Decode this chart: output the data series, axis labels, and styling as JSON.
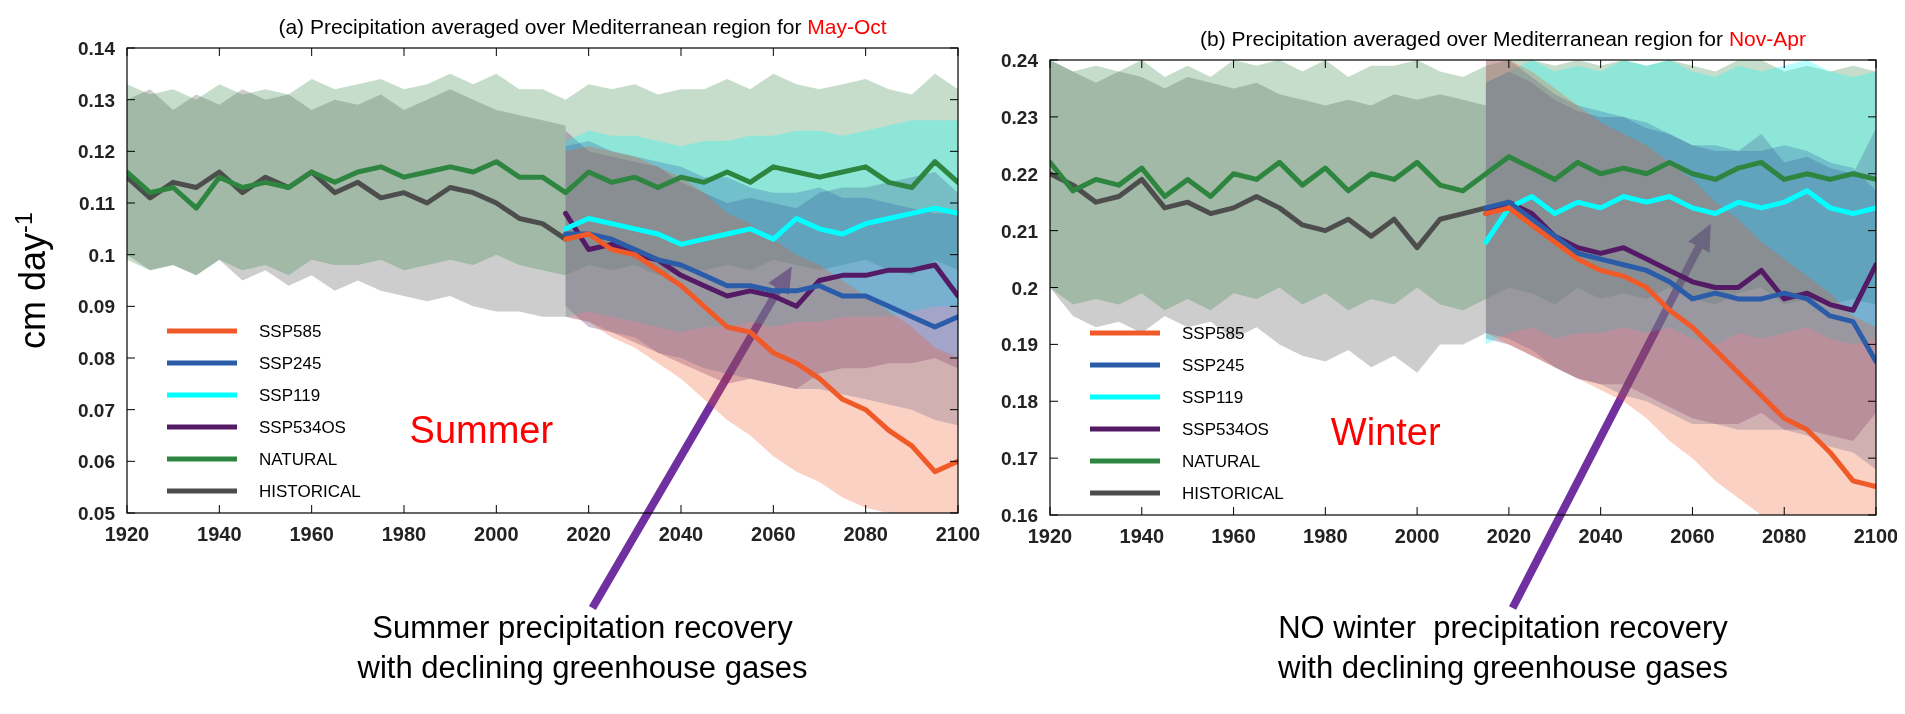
{
  "chart_data": [
    {
      "type": "line",
      "title": "(a) Precipitation averaged over Mediterranean region for",
      "subtitle": "May-Oct",
      "ylabel": "cm day$^{-1}$",
      "xlim": [
        1920,
        2100
      ],
      "xticks": [
        1920,
        1940,
        1960,
        1980,
        2000,
        2020,
        2040,
        2060,
        2080,
        2100
      ],
      "ylim": [
        0.05,
        0.14
      ],
      "yticks": [
        0.05,
        0.06,
        0.07,
        0.08,
        0.09,
        0.1,
        0.11,
        0.12,
        0.13,
        0.14
      ],
      "legend": "bottom left",
      "grid": false,
      "annotations": [
        "Summer",
        "Summer precipitation recovery with declining greenhouse gases"
      ],
      "series": [
        {
          "name": "SSP585",
          "color": "#f05a28",
          "x": [
            2015,
            2020,
            2025,
            2030,
            2035,
            2040,
            2045,
            2050,
            2055,
            2060,
            2065,
            2070,
            2075,
            2080,
            2085,
            2090,
            2095,
            2100
          ],
          "values": [
            0.103,
            0.104,
            0.101,
            0.1,
            0.097,
            0.094,
            0.09,
            0.086,
            0.085,
            0.081,
            0.079,
            0.076,
            0.072,
            0.07,
            0.066,
            0.063,
            0.058,
            0.06
          ],
          "lower": [
            0.088,
            0.087,
            0.084,
            0.082,
            0.079,
            0.076,
            0.072,
            0.068,
            0.065,
            0.061,
            0.058,
            0.056,
            0.053,
            0.051,
            0.05,
            0.05,
            0.05,
            0.05
          ],
          "upper": [
            0.12,
            0.121,
            0.12,
            0.119,
            0.117,
            0.115,
            0.112,
            0.108,
            0.106,
            0.103,
            0.1,
            0.098,
            0.095,
            0.092,
            0.089,
            0.086,
            0.082,
            0.08
          ]
        },
        {
          "name": "SSP245",
          "color": "#2a5caa",
          "x": [
            2015,
            2020,
            2025,
            2030,
            2035,
            2040,
            2045,
            2050,
            2055,
            2060,
            2065,
            2070,
            2075,
            2080,
            2085,
            2090,
            2095,
            2100
          ],
          "values": [
            0.104,
            0.104,
            0.103,
            0.101,
            0.099,
            0.098,
            0.096,
            0.094,
            0.094,
            0.093,
            0.093,
            0.094,
            0.092,
            0.092,
            0.09,
            0.088,
            0.086,
            0.088
          ],
          "lower": [
            0.088,
            0.087,
            0.085,
            0.084,
            0.081,
            0.08,
            0.078,
            0.077,
            0.076,
            0.075,
            0.074,
            0.074,
            0.073,
            0.072,
            0.071,
            0.07,
            0.068,
            0.067
          ],
          "upper": [
            0.121,
            0.122,
            0.12,
            0.119,
            0.118,
            0.117,
            0.115,
            0.115,
            0.113,
            0.112,
            0.112,
            0.113,
            0.111,
            0.111,
            0.11,
            0.109,
            0.108,
            0.108
          ]
        },
        {
          "name": "SSP119",
          "color": "#00ffff",
          "x": [
            2015,
            2020,
            2025,
            2030,
            2035,
            2040,
            2045,
            2050,
            2055,
            2060,
            2065,
            2070,
            2075,
            2080,
            2085,
            2090,
            2095,
            2100
          ],
          "values": [
            0.105,
            0.107,
            0.106,
            0.105,
            0.104,
            0.102,
            0.103,
            0.104,
            0.105,
            0.103,
            0.107,
            0.105,
            0.104,
            0.106,
            0.107,
            0.108,
            0.109,
            0.108
          ],
          "lower": [
            0.088,
            0.089,
            0.088,
            0.087,
            0.086,
            0.085,
            0.086,
            0.086,
            0.087,
            0.086,
            0.087,
            0.087,
            0.088,
            0.088,
            0.088,
            0.089,
            0.09,
            0.09
          ],
          "upper": [
            0.122,
            0.124,
            0.123,
            0.123,
            0.122,
            0.121,
            0.122,
            0.122,
            0.123,
            0.123,
            0.124,
            0.124,
            0.123,
            0.124,
            0.125,
            0.126,
            0.126,
            0.126
          ]
        },
        {
          "name": "SSP534OS",
          "color": "#551a66",
          "x": [
            2015,
            2020,
            2025,
            2030,
            2035,
            2040,
            2045,
            2050,
            2055,
            2060,
            2065,
            2070,
            2075,
            2080,
            2085,
            2090,
            2095,
            2100
          ],
          "values": [
            0.108,
            0.101,
            0.102,
            0.1,
            0.099,
            0.096,
            0.094,
            0.092,
            0.093,
            0.092,
            0.09,
            0.095,
            0.096,
            0.096,
            0.097,
            0.097,
            0.098,
            0.092
          ],
          "lower": [
            0.09,
            0.086,
            0.085,
            0.083,
            0.081,
            0.079,
            0.077,
            0.075,
            0.076,
            0.075,
            0.074,
            0.077,
            0.078,
            0.078,
            0.079,
            0.079,
            0.08,
            0.078
          ],
          "upper": [
            0.124,
            0.12,
            0.119,
            0.118,
            0.117,
            0.114,
            0.112,
            0.11,
            0.111,
            0.11,
            0.109,
            0.112,
            0.113,
            0.113,
            0.114,
            0.115,
            0.116,
            0.112
          ]
        },
        {
          "name": "NATURAL",
          "color": "#2e8540",
          "x": [
            1920,
            1925,
            1930,
            1935,
            1940,
            1945,
            1950,
            1955,
            1960,
            1965,
            1970,
            1975,
            1980,
            1985,
            1990,
            1995,
            2000,
            2005,
            2010,
            2015,
            2020,
            2025,
            2030,
            2035,
            2040,
            2045,
            2050,
            2055,
            2060,
            2065,
            2070,
            2075,
            2080,
            2085,
            2090,
            2095,
            2100
          ],
          "values": [
            0.116,
            0.112,
            0.113,
            0.109,
            0.115,
            0.113,
            0.114,
            0.113,
            0.116,
            0.114,
            0.116,
            0.117,
            0.115,
            0.116,
            0.117,
            0.116,
            0.118,
            0.115,
            0.115,
            0.112,
            0.116,
            0.114,
            0.115,
            0.113,
            0.115,
            0.114,
            0.116,
            0.114,
            0.117,
            0.116,
            0.115,
            0.116,
            0.117,
            0.114,
            0.113,
            0.118,
            0.114
          ],
          "lower": [
            0.099,
            0.097,
            0.098,
            0.096,
            0.099,
            0.097,
            0.098,
            0.096,
            0.099,
            0.098,
            0.098,
            0.099,
            0.097,
            0.098,
            0.099,
            0.098,
            0.1,
            0.098,
            0.097,
            0.096,
            0.098,
            0.097,
            0.098,
            0.096,
            0.097,
            0.097,
            0.098,
            0.097,
            0.099,
            0.098,
            0.097,
            0.098,
            0.099,
            0.097,
            0.096,
            0.099,
            0.097
          ],
          "upper": [
            0.133,
            0.131,
            0.132,
            0.13,
            0.133,
            0.131,
            0.132,
            0.131,
            0.134,
            0.132,
            0.133,
            0.134,
            0.132,
            0.133,
            0.135,
            0.133,
            0.135,
            0.132,
            0.132,
            0.13,
            0.133,
            0.132,
            0.133,
            0.131,
            0.132,
            0.132,
            0.134,
            0.132,
            0.135,
            0.133,
            0.132,
            0.133,
            0.134,
            0.132,
            0.131,
            0.135,
            0.132
          ]
        },
        {
          "name": "HISTORICAL",
          "color": "#4d4d4d",
          "x": [
            1920,
            1925,
            1930,
            1935,
            1940,
            1945,
            1950,
            1955,
            1960,
            1965,
            1970,
            1975,
            1980,
            1985,
            1990,
            1995,
            2000,
            2005,
            2010,
            2015
          ],
          "values": [
            0.115,
            0.111,
            0.114,
            0.113,
            0.116,
            0.112,
            0.115,
            0.113,
            0.116,
            0.112,
            0.114,
            0.111,
            0.112,
            0.11,
            0.113,
            0.112,
            0.11,
            0.107,
            0.106,
            0.103
          ],
          "lower": [
            0.1,
            0.097,
            0.098,
            0.096,
            0.099,
            0.095,
            0.097,
            0.094,
            0.096,
            0.093,
            0.095,
            0.093,
            0.092,
            0.091,
            0.092,
            0.09,
            0.089,
            0.089,
            0.088,
            0.088
          ],
          "upper": [
            0.13,
            0.132,
            0.128,
            0.131,
            0.129,
            0.132,
            0.13,
            0.131,
            0.128,
            0.13,
            0.129,
            0.131,
            0.128,
            0.13,
            0.132,
            0.13,
            0.128,
            0.127,
            0.126,
            0.125
          ]
        }
      ]
    },
    {
      "type": "line",
      "title": "(b) Precipitation averaged over Mediterranean region for",
      "subtitle": "Nov-Apr",
      "xlim": [
        1920,
        2100
      ],
      "xticks": [
        1920,
        1940,
        1960,
        1980,
        2000,
        2020,
        2040,
        2060,
        2080,
        2100
      ],
      "ylim": [
        0.16,
        0.24
      ],
      "yticks": [
        0.16,
        0.17,
        0.18,
        0.19,
        0.2,
        0.21,
        0.22,
        0.23,
        0.24
      ],
      "legend": "bottom left",
      "grid": false,
      "annotations": [
        "Winter",
        "NO winter  precipitation recovery with declining greenhouse gases"
      ],
      "series": [
        {
          "name": "SSP585",
          "color": "#f05a28",
          "x": [
            2015,
            2020,
            2025,
            2030,
            2035,
            2040,
            2045,
            2050,
            2055,
            2060,
            2065,
            2070,
            2075,
            2080,
            2085,
            2090,
            2095,
            2100
          ],
          "values": [
            0.213,
            0.214,
            0.211,
            0.208,
            0.205,
            0.203,
            0.202,
            0.2,
            0.196,
            0.193,
            0.189,
            0.185,
            0.181,
            0.177,
            0.175,
            0.171,
            0.166,
            0.165
          ],
          "lower": [
            0.192,
            0.19,
            0.188,
            0.186,
            0.184,
            0.182,
            0.18,
            0.177,
            0.173,
            0.17,
            0.166,
            0.163,
            0.16,
            0.16,
            0.16,
            0.16,
            0.16,
            0.16
          ],
          "upper": [
            0.24,
            0.24,
            0.238,
            0.235,
            0.232,
            0.229,
            0.227,
            0.225,
            0.222,
            0.219,
            0.215,
            0.212,
            0.208,
            0.205,
            0.202,
            0.199,
            0.195,
            0.193
          ]
        },
        {
          "name": "SSP245",
          "color": "#2a5caa",
          "x": [
            2015,
            2020,
            2025,
            2030,
            2035,
            2040,
            2045,
            2050,
            2055,
            2060,
            2065,
            2070,
            2075,
            2080,
            2085,
            2090,
            2095,
            2100
          ],
          "values": [
            0.214,
            0.215,
            0.212,
            0.209,
            0.206,
            0.205,
            0.204,
            0.203,
            0.201,
            0.198,
            0.199,
            0.198,
            0.198,
            0.199,
            0.198,
            0.195,
            0.194,
            0.187
          ],
          "lower": [
            0.192,
            0.191,
            0.189,
            0.186,
            0.184,
            0.183,
            0.181,
            0.18,
            0.178,
            0.176,
            0.176,
            0.175,
            0.175,
            0.175,
            0.174,
            0.172,
            0.171,
            0.168
          ],
          "upper": [
            0.24,
            0.24,
            0.237,
            0.234,
            0.232,
            0.231,
            0.23,
            0.229,
            0.227,
            0.225,
            0.225,
            0.224,
            0.224,
            0.225,
            0.224,
            0.222,
            0.221,
            0.217
          ]
        },
        {
          "name": "SSP119",
          "color": "#00ffff",
          "x": [
            2015,
            2020,
            2025,
            2030,
            2035,
            2040,
            2045,
            2050,
            2055,
            2060,
            2065,
            2070,
            2075,
            2080,
            2085,
            2090,
            2095,
            2100
          ],
          "values": [
            0.208,
            0.214,
            0.216,
            0.213,
            0.215,
            0.214,
            0.216,
            0.215,
            0.216,
            0.214,
            0.213,
            0.215,
            0.214,
            0.215,
            0.217,
            0.214,
            0.213,
            0.214
          ],
          "lower": [
            0.19,
            0.192,
            0.193,
            0.191,
            0.192,
            0.192,
            0.193,
            0.192,
            0.193,
            0.191,
            0.19,
            0.192,
            0.191,
            0.192,
            0.193,
            0.191,
            0.19,
            0.191
          ],
          "upper": [
            0.236,
            0.238,
            0.24,
            0.238,
            0.239,
            0.238,
            0.24,
            0.239,
            0.24,
            0.238,
            0.237,
            0.239,
            0.238,
            0.239,
            0.24,
            0.238,
            0.237,
            0.238
          ]
        },
        {
          "name": "SSP534OS",
          "color": "#551a66",
          "x": [
            2015,
            2020,
            2025,
            2030,
            2035,
            2040,
            2045,
            2050,
            2055,
            2060,
            2065,
            2070,
            2075,
            2080,
            2085,
            2090,
            2095,
            2100
          ],
          "values": [
            0.213,
            0.215,
            0.213,
            0.209,
            0.207,
            0.206,
            0.207,
            0.205,
            0.203,
            0.201,
            0.2,
            0.2,
            0.203,
            0.198,
            0.199,
            0.197,
            0.196,
            0.204
          ],
          "lower": [
            0.191,
            0.19,
            0.188,
            0.186,
            0.184,
            0.183,
            0.183,
            0.181,
            0.179,
            0.177,
            0.176,
            0.176,
            0.178,
            0.175,
            0.175,
            0.174,
            0.173,
            0.178
          ],
          "upper": [
            0.236,
            0.238,
            0.236,
            0.233,
            0.231,
            0.23,
            0.23,
            0.228,
            0.227,
            0.225,
            0.224,
            0.224,
            0.227,
            0.222,
            0.223,
            0.221,
            0.22,
            0.228
          ]
        },
        {
          "name": "NATURAL",
          "color": "#2e8540",
          "x": [
            1920,
            1925,
            1930,
            1935,
            1940,
            1945,
            1950,
            1955,
            1960,
            1965,
            1970,
            1975,
            1980,
            1985,
            1990,
            1995,
            2000,
            2005,
            2010,
            2015,
            2020,
            2025,
            2030,
            2035,
            2040,
            2045,
            2050,
            2055,
            2060,
            2065,
            2070,
            2075,
            2080,
            2085,
            2090,
            2095,
            2100
          ],
          "values": [
            0.222,
            0.217,
            0.219,
            0.218,
            0.221,
            0.216,
            0.219,
            0.216,
            0.22,
            0.219,
            0.222,
            0.218,
            0.221,
            0.217,
            0.22,
            0.219,
            0.222,
            0.218,
            0.217,
            0.22,
            0.223,
            0.221,
            0.219,
            0.222,
            0.22,
            0.221,
            0.22,
            0.222,
            0.22,
            0.219,
            0.221,
            0.222,
            0.219,
            0.22,
            0.219,
            0.22,
            0.219
          ],
          "lower": [
            0.2,
            0.197,
            0.198,
            0.197,
            0.199,
            0.196,
            0.198,
            0.196,
            0.199,
            0.198,
            0.2,
            0.197,
            0.199,
            0.196,
            0.198,
            0.197,
            0.2,
            0.197,
            0.196,
            0.198,
            0.2,
            0.199,
            0.197,
            0.2,
            0.198,
            0.199,
            0.198,
            0.2,
            0.198,
            0.197,
            0.199,
            0.2,
            0.197,
            0.198,
            0.197,
            0.198,
            0.197
          ],
          "upper": [
            0.24,
            0.238,
            0.239,
            0.238,
            0.24,
            0.237,
            0.239,
            0.237,
            0.24,
            0.239,
            0.24,
            0.238,
            0.24,
            0.237,
            0.239,
            0.239,
            0.24,
            0.238,
            0.237,
            0.239,
            0.24,
            0.24,
            0.239,
            0.24,
            0.239,
            0.24,
            0.239,
            0.24,
            0.239,
            0.238,
            0.24,
            0.24,
            0.238,
            0.239,
            0.238,
            0.239,
            0.238
          ]
        },
        {
          "name": "HISTORICAL",
          "color": "#4d4d4d",
          "x": [
            1920,
            1925,
            1930,
            1935,
            1940,
            1945,
            1950,
            1955,
            1960,
            1965,
            1970,
            1975,
            1980,
            1985,
            1990,
            1995,
            2000,
            2005,
            2010,
            2015
          ],
          "values": [
            0.22,
            0.218,
            0.215,
            0.216,
            0.219,
            0.214,
            0.215,
            0.213,
            0.214,
            0.216,
            0.214,
            0.211,
            0.21,
            0.212,
            0.209,
            0.212,
            0.207,
            0.212,
            0.213,
            0.214
          ],
          "lower": [
            0.2,
            0.195,
            0.193,
            0.194,
            0.192,
            0.195,
            0.193,
            0.194,
            0.191,
            0.193,
            0.19,
            0.188,
            0.187,
            0.189,
            0.186,
            0.188,
            0.185,
            0.19,
            0.19,
            0.192
          ],
          "upper": [
            0.24,
            0.238,
            0.236,
            0.238,
            0.237,
            0.235,
            0.237,
            0.236,
            0.235,
            0.236,
            0.234,
            0.233,
            0.232,
            0.233,
            0.232,
            0.234,
            0.233,
            0.234,
            0.233,
            0.232
          ]
        }
      ]
    }
  ]
}
